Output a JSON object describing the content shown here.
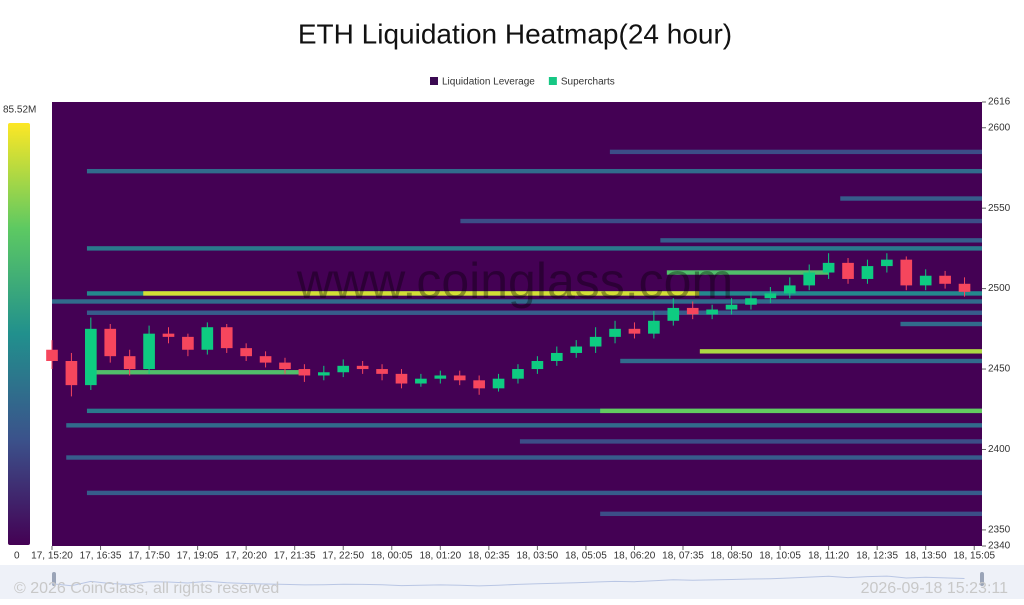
{
  "chart_data": {
    "type": "heatmap",
    "title": "ETH Liquidation Heatmap(24 hour)",
    "legend": [
      {
        "name": "Liquidation Leverage",
        "color": "#3b0a52"
      },
      {
        "name": "Supercharts",
        "color": "#16c784"
      }
    ],
    "watermark": "www.coinglass.com",
    "xlim": [
      0,
      1437
    ],
    "xticks": [
      {
        "value": 0,
        "label": "17, 15:20"
      },
      {
        "value": 75,
        "label": "17, 16:35"
      },
      {
        "value": 150,
        "label": "17, 17:50"
      },
      {
        "value": 225,
        "label": "17, 19:05"
      },
      {
        "value": 300,
        "label": "17, 20:20"
      },
      {
        "value": 375,
        "label": "17, 21:35"
      },
      {
        "value": 450,
        "label": "17, 22:50"
      },
      {
        "value": 525,
        "label": "18, 00:05"
      },
      {
        "value": 600,
        "label": "18, 01:20"
      },
      {
        "value": 675,
        "label": "18, 02:35"
      },
      {
        "value": 750,
        "label": "18, 03:50"
      },
      {
        "value": 825,
        "label": "18, 05:05"
      },
      {
        "value": 900,
        "label": "18, 06:20"
      },
      {
        "value": 975,
        "label": "18, 07:35"
      },
      {
        "value": 1050,
        "label": "18, 08:50"
      },
      {
        "value": 1125,
        "label": "18, 10:05"
      },
      {
        "value": 1200,
        "label": "18, 11:20"
      },
      {
        "value": 1275,
        "label": "18, 12:35"
      },
      {
        "value": 1350,
        "label": "18, 13:50"
      },
      {
        "value": 1425,
        "label": "18, 15:05"
      }
    ],
    "ylim": [
      2340,
      2616
    ],
    "yticks": [
      2340,
      2350,
      2400,
      2450,
      2500,
      2550,
      2600,
      2616
    ],
    "colorbar": {
      "lim": [
        0,
        85.52
      ],
      "ticks": [
        {
          "value": 0,
          "label": "0"
        },
        {
          "value": 85.52,
          "label": "85.52M"
        }
      ],
      "colors": [
        "#440154",
        "#3b528b",
        "#21908d",
        "#5dc962",
        "#fde725"
      ]
    },
    "bands": {
      "price": [
        2573,
        2585,
        2556,
        2542,
        2530,
        2525,
        2510,
        2497,
        2497,
        2492,
        2485,
        2478,
        2461,
        2455,
        2448,
        2424,
        2424,
        2415,
        2405,
        2395,
        2373,
        2360
      ],
      "start": [
        54,
        862,
        1218,
        631,
        940,
        54,
        950,
        54,
        141,
        0,
        54,
        1311,
        1001,
        878,
        54,
        54,
        847,
        22,
        723,
        22,
        54,
        847
      ],
      "end": [
        1437,
        1437,
        1437,
        1437,
        1437,
        1437,
        1200,
        1437,
        1000,
        1437,
        1437,
        1437,
        1437,
        1437,
        383,
        1437,
        1437,
        1437,
        1437,
        1437,
        1437,
        1437
      ],
      "values": [
        30,
        20,
        25,
        20,
        25,
        35,
        60,
        40,
        80,
        30,
        25,
        30,
        75,
        30,
        60,
        35,
        65,
        30,
        20,
        25,
        25,
        20
      ]
    },
    "candles": {
      "x": [
        0,
        30,
        60,
        90,
        120,
        150,
        180,
        210,
        240,
        270,
        300,
        330,
        360,
        390,
        420,
        450,
        480,
        510,
        540,
        570,
        600,
        630,
        660,
        690,
        720,
        750,
        780,
        810,
        840,
        870,
        900,
        930,
        960,
        990,
        1020,
        1050,
        1080,
        1110,
        1140,
        1170,
        1200,
        1230,
        1260,
        1290,
        1320,
        1350,
        1380,
        1410
      ],
      "open": [
        2462,
        2455,
        2440,
        2475,
        2458,
        2450,
        2472,
        2470,
        2462,
        2476,
        2463,
        2458,
        2454,
        2450,
        2446,
        2448,
        2452,
        2450,
        2447,
        2441,
        2444,
        2446,
        2443,
        2438,
        2444,
        2450,
        2455,
        2460,
        2464,
        2470,
        2475,
        2472,
        2480,
        2488,
        2484,
        2487,
        2490,
        2494,
        2497,
        2502,
        2510,
        2516,
        2506,
        2514,
        2518,
        2502,
        2508,
        2503
      ],
      "close": [
        2455,
        2440,
        2475,
        2458,
        2450,
        2472,
        2470,
        2462,
        2476,
        2463,
        2458,
        2454,
        2450,
        2446,
        2448,
        2452,
        2450,
        2447,
        2441,
        2444,
        2446,
        2443,
        2438,
        2444,
        2450,
        2455,
        2460,
        2464,
        2470,
        2475,
        2472,
        2480,
        2488,
        2484,
        2487,
        2490,
        2494,
        2497,
        2502,
        2510,
        2516,
        2506,
        2514,
        2518,
        2502,
        2508,
        2503,
        2498
      ],
      "high": [
        2468,
        2460,
        2482,
        2478,
        2462,
        2477,
        2476,
        2472,
        2479,
        2478,
        2466,
        2461,
        2457,
        2453,
        2452,
        2456,
        2455,
        2453,
        2450,
        2447,
        2449,
        2449,
        2446,
        2447,
        2453,
        2458,
        2464,
        2468,
        2476,
        2480,
        2479,
        2486,
        2494,
        2492,
        2490,
        2494,
        2498,
        2501,
        2507,
        2515,
        2522,
        2519,
        2518,
        2522,
        2520,
        2512,
        2511,
        2507
      ],
      "low": [
        2450,
        2433,
        2437,
        2454,
        2446,
        2447,
        2466,
        2458,
        2459,
        2460,
        2455,
        2451,
        2447,
        2442,
        2443,
        2445,
        2447,
        2443,
        2438,
        2439,
        2441,
        2440,
        2434,
        2436,
        2441,
        2447,
        2452,
        2457,
        2460,
        2466,
        2469,
        2469,
        2477,
        2481,
        2481,
        2484,
        2487,
        2491,
        2494,
        2499,
        2506,
        2503,
        2503,
        2510,
        2499,
        2499,
        2500,
        2495
      ],
      "up_color": "#0ecb81",
      "down_color": "#f6465d"
    }
  },
  "footer": {
    "copyright": "© 2026 CoinGlass, all rights reserved",
    "timestamp": "2026-09-18 15:23:11"
  }
}
